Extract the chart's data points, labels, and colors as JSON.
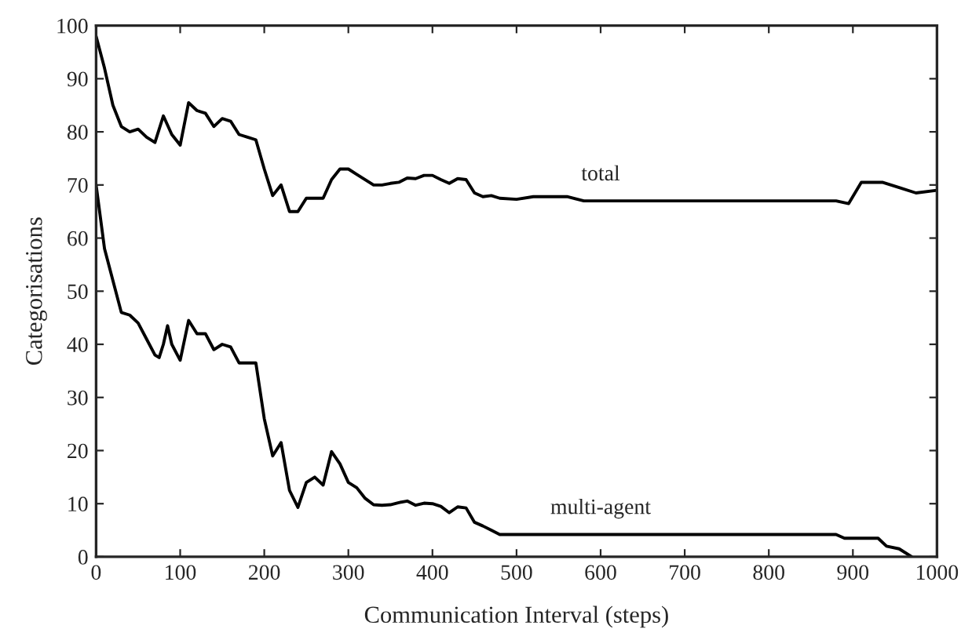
{
  "chart_data": {
    "type": "line",
    "xlabel": "Communication Interval (steps)",
    "ylabel": "Categorisations",
    "xlim": [
      0,
      1000
    ],
    "ylim": [
      0,
      100
    ],
    "xticks": [
      0,
      100,
      200,
      300,
      400,
      500,
      600,
      700,
      800,
      900,
      1000
    ],
    "yticks": [
      0,
      10,
      20,
      30,
      40,
      50,
      60,
      70,
      80,
      90,
      100
    ],
    "grid": false,
    "legend": false,
    "line_style": "solid",
    "marker": "none",
    "series": [
      {
        "name": "total",
        "color": "#000000",
        "x": [
          0,
          10,
          20,
          30,
          40,
          50,
          60,
          70,
          80,
          90,
          100,
          110,
          120,
          130,
          140,
          150,
          160,
          170,
          180,
          190,
          200,
          210,
          220,
          230,
          240,
          250,
          260,
          270,
          280,
          290,
          300,
          310,
          320,
          330,
          340,
          350,
          360,
          370,
          380,
          390,
          400,
          410,
          420,
          430,
          440,
          450,
          460,
          470,
          480,
          500,
          520,
          540,
          560,
          580,
          600,
          700,
          800,
          880,
          895,
          910,
          935,
          955,
          975,
          1000
        ],
        "values": [
          98,
          92,
          85,
          81,
          80,
          80.5,
          79,
          78,
          83,
          79.5,
          77.5,
          85.5,
          84,
          83.5,
          81,
          82.5,
          82,
          79.5,
          79,
          78.5,
          73,
          68,
          70,
          65,
          65,
          67.5,
          67.5,
          67.5,
          71,
          73,
          73,
          72,
          71,
          70,
          70,
          70.3,
          70.5,
          71.3,
          71.2,
          71.8,
          71.8,
          71,
          70.3,
          71.2,
          71,
          68.5,
          67.8,
          68,
          67.5,
          67.3,
          67.8,
          67.8,
          67.8,
          67,
          67,
          67,
          67,
          67,
          66.5,
          70.5,
          70.5,
          69.5,
          68.5,
          69
        ]
      },
      {
        "name": "multi-agent",
        "color": "#000000",
        "x": [
          0,
          10,
          20,
          30,
          40,
          50,
          60,
          70,
          75,
          80,
          85,
          90,
          100,
          110,
          120,
          130,
          140,
          150,
          160,
          170,
          180,
          190,
          200,
          210,
          220,
          230,
          240,
          250,
          260,
          270,
          280,
          290,
          300,
          310,
          320,
          330,
          340,
          350,
          360,
          370,
          380,
          390,
          400,
          410,
          420,
          430,
          440,
          450,
          460,
          470,
          480,
          500,
          600,
          700,
          800,
          880,
          890,
          930,
          940,
          955,
          970
        ],
        "values": [
          70,
          58,
          52,
          46,
          45.5,
          44,
          41,
          38,
          37.5,
          40,
          43.5,
          40,
          37,
          44.5,
          42,
          42,
          39,
          40,
          39.5,
          36.5,
          36.5,
          36.5,
          26,
          19,
          21.5,
          12.5,
          9.3,
          14,
          15,
          13.5,
          19.8,
          17.5,
          14,
          13,
          11,
          9.8,
          9.7,
          9.8,
          10.2,
          10.5,
          9.7,
          10.1,
          10,
          9.5,
          8.3,
          9.4,
          9.2,
          6.5,
          5.8,
          5,
          4.2,
          4.2,
          4.2,
          4.2,
          4.2,
          4.2,
          3.5,
          3.5,
          2,
          1.5,
          0
        ]
      }
    ]
  }
}
